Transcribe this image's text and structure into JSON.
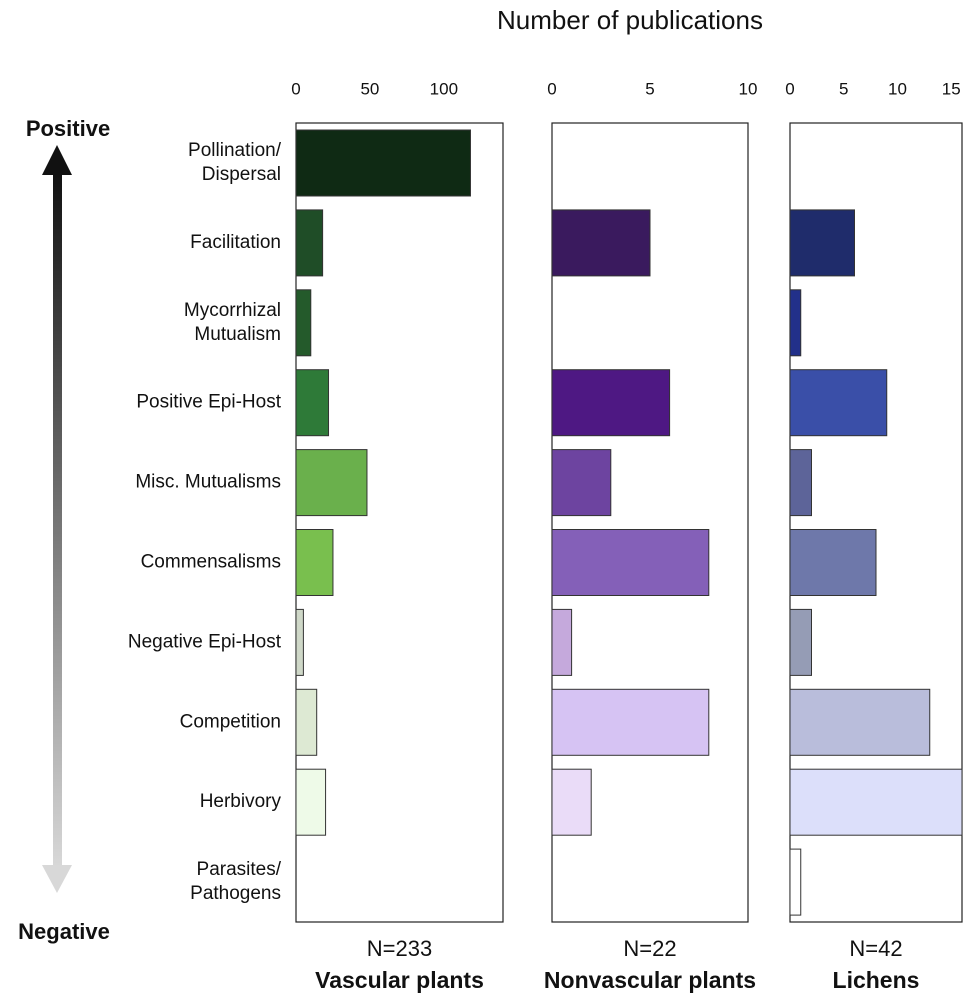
{
  "figure": {
    "title": "Number of publications",
    "positive_label": "Positive",
    "negative_label": "Negative",
    "categories": [
      [
        "Pollination/",
        "Dispersal"
      ],
      [
        "Facilitation"
      ],
      [
        "Mycorrhizal",
        "Mutualism"
      ],
      [
        "Positive Epi-Host"
      ],
      [
        "Misc. Mutualisms"
      ],
      [
        "Commensalisms"
      ],
      [
        "Negative Epi-Host"
      ],
      [
        "Competition"
      ],
      [
        "Herbivory"
      ],
      [
        "Parasites/",
        "Pathogens"
      ]
    ]
  },
  "chart_data": [
    {
      "type": "barh",
      "name": "Vascular plants",
      "n_label": "N=233",
      "values": [
        118,
        18,
        10,
        22,
        48,
        25,
        5,
        14,
        20,
        null
      ],
      "colors": [
        "#0f2a14",
        "#1f4d27",
        "#245a2b",
        "#2e7a38",
        "#6ab04c",
        "#79bf4e",
        "#cfd8c8",
        "#dde9d3",
        "#eefae8",
        null
      ],
      "xlim": [
        0,
        140
      ],
      "xticks": [
        0,
        50,
        100
      ]
    },
    {
      "type": "barh",
      "name": "Nonvascular plants",
      "n_label": "N=22",
      "values": [
        null,
        5,
        null,
        6,
        3,
        8,
        1,
        8,
        2,
        null
      ],
      "colors": [
        null,
        "#3a1a5e",
        null,
        "#4e1883",
        "#6d44a0",
        "#8460b8",
        "#c5a9dc",
        "#d6c3f3",
        "#eadcf8",
        null
      ],
      "xlim": [
        0,
        10
      ],
      "xticks": [
        0,
        5,
        10
      ]
    },
    {
      "type": "barh",
      "name": "Lichens",
      "n_label": "N=42",
      "values": [
        null,
        6,
        1,
        9,
        2,
        8,
        2,
        13,
        16,
        1
      ],
      "colors": [
        null,
        "#1f2c6b",
        "#22308a",
        "#3a4fa8",
        "#5d6499",
        "#6e78aa",
        "#959cb5",
        "#b9bddb",
        "#dcdffa",
        "#ffffff"
      ],
      "xlim": [
        0,
        16
      ],
      "xticks": [
        0,
        5,
        10,
        15
      ]
    }
  ]
}
